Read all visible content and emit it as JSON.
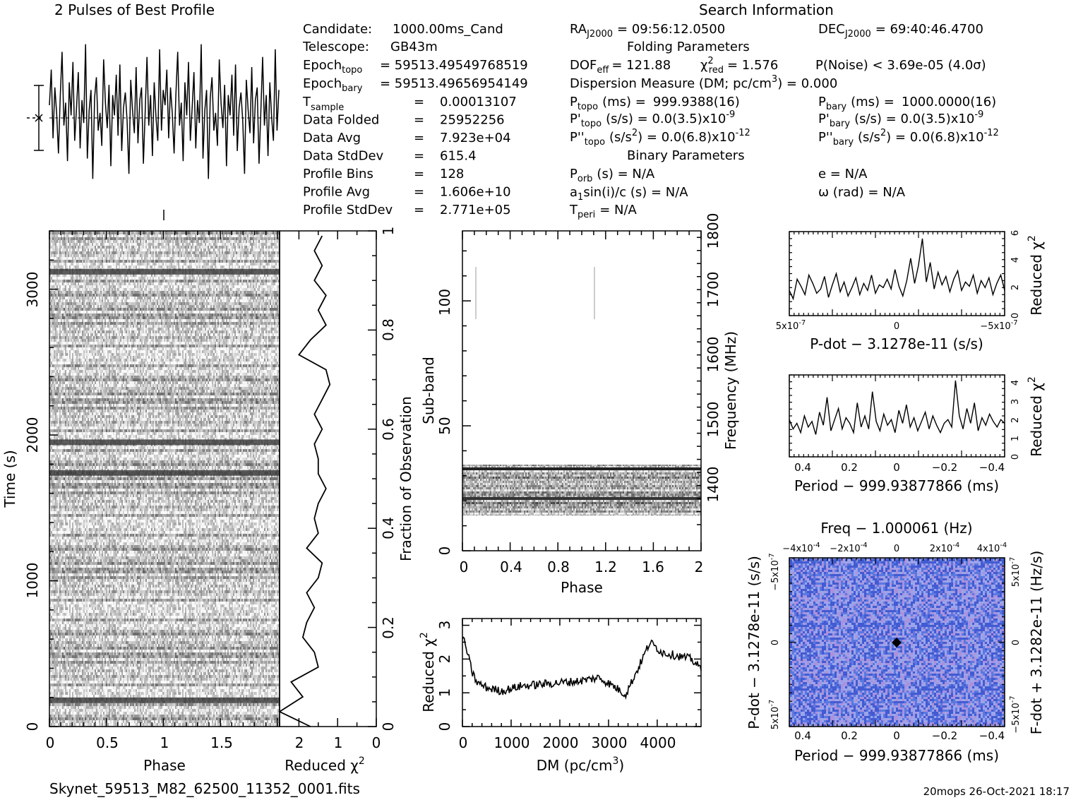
{
  "header": {
    "profile_title": "2 Pulses of Best Profile",
    "search_title": "Search Information",
    "filename": "Skynet_59513_M82_62500_11352_0001.fits",
    "footer_stamp": "20mops 26-Oct-2021 18:17"
  },
  "info": {
    "candidate": {
      "label": "Candidate:",
      "value": "1000.00ms_Cand"
    },
    "telescope": {
      "label": "Telescope:",
      "value": "GB43m"
    },
    "epoch_topo": {
      "label": "Epoch",
      "sub": "topo",
      "value": "= 59513.49549768519"
    },
    "epoch_bary": {
      "label": "Epoch",
      "sub": "bary",
      "value": "= 59513.49656954149"
    },
    "rows": [
      {
        "label": "T",
        "sub": "sample",
        "value": "0.00013107"
      },
      {
        "label": "Data Folded",
        "sub": "",
        "value": "25952256"
      },
      {
        "label": "Data Avg",
        "sub": "",
        "value": "7.923e+04"
      },
      {
        "label": "Data StdDev",
        "sub": "",
        "value": "615.4"
      },
      {
        "label": "Profile Bins",
        "sub": "",
        "value": "128"
      },
      {
        "label": "Profile Avg",
        "sub": "",
        "value": "1.606e+10"
      },
      {
        "label": "Profile StdDev",
        "sub": "",
        "value": "2.771e+05"
      }
    ],
    "ra": {
      "label": "RA",
      "sub": "J2000",
      "value": "= 09:56:12.0500"
    },
    "dec": {
      "label": "DEC",
      "sub": "J2000",
      "value": "= 69:40:46.4700"
    },
    "folding_title": "Folding Parameters",
    "dof": {
      "label": "DOF",
      "sub": "eff",
      "value": "= 121.88"
    },
    "chi_red": {
      "label": "χ",
      "sup": "2",
      "sub": "red",
      "value": "= 1.576"
    },
    "pnoise": "P(Noise) < 3.69e-05  (4.0σ)",
    "dm_label": "Dispersion Measure (DM; pc/cm",
    "dm_sup": "3",
    "dm_value": ") = 0.000",
    "p_topo": {
      "label": "P",
      "sub": "topo",
      "unit": "(ms) =",
      "value": "999.9388(16)"
    },
    "p_bary": {
      "label": "P",
      "sub": "bary",
      "unit": "(ms) =",
      "value": "1000.0000(16)"
    },
    "pd_topo": {
      "label": "P'",
      "sub": "topo",
      "value": "(s/s) = 0.0(3.5)x10",
      "exp": "-9"
    },
    "pd_bary": {
      "label": "P'",
      "sub": "bary",
      "value": "(s/s) = 0.0(3.5)x10",
      "exp": "-9"
    },
    "pdd_topo": {
      "label": "P''",
      "sub": "topo",
      "value": "(s/s",
      "sup": "2",
      "value2": ") = 0.0(6.8)x10",
      "exp": "-12"
    },
    "pdd_bary": {
      "label": "P''",
      "sub": "bary",
      "value": "(s/s",
      "sup": "2",
      "value2": ") = 0.0(6.8)x10",
      "exp": "-12"
    },
    "binary_title": "Binary Parameters",
    "porb": {
      "label": "P",
      "sub": "orb",
      "value": "(s) = N/A"
    },
    "a1": {
      "label": "a",
      "sub": "1",
      "value": "sin(i)/c (s) = N/A"
    },
    "tperi": {
      "label": "T",
      "sub": "peri",
      "value": "= N/A"
    },
    "ecc": "e = N/A",
    "omega": "ω (rad) = N/A"
  },
  "chart_data": [
    {
      "id": "pulse_profile",
      "type": "line",
      "title": "2 Pulses of Best Profile",
      "xlabel": "",
      "ylabel": "",
      "xlim": [
        0,
        2
      ],
      "values": [
        0.5,
        1.9,
        -0.8,
        1.2,
        0.2,
        -1.4,
        0.9,
        2.6,
        -0.3,
        0.6,
        -1.7,
        1.4,
        0.1,
        2.2,
        -0.9,
        0.4,
        1.8,
        -1.2,
        0.7,
        -0.2,
        2.9,
        -1.6,
        0.3,
        1.1,
        -2.4,
        0.8,
        1.6,
        -0.5,
        0.2,
        -1.1,
        2.3,
        0.6,
        -0.4,
        1.3,
        -1.9,
        0.9,
        0.1,
        1.7,
        -0.7,
        2.1,
        -1.3,
        0.4,
        1.0,
        -0.1,
        -2.2,
        1.5,
        0.3,
        -0.6,
        2.0,
        -1.0,
        0.7,
        1.2,
        -1.8,
        0.2,
        2.4,
        -0.3,
        0.9,
        -1.5,
        1.4,
        0.0,
        -0.9,
        2.7,
        -0.5,
        1.1
      ]
    },
    {
      "id": "time_phase",
      "type": "heatmap",
      "xlabel": "Phase",
      "ylabel": "Time (s)",
      "y2label": "Fraction of Observation",
      "xlim": [
        0,
        2
      ],
      "ylim": [
        0,
        3400
      ],
      "xticks": [
        "0",
        "0.5",
        "1",
        "1.5"
      ],
      "yticks": [
        "0",
        "1000",
        "2000",
        "3000"
      ],
      "y2ticks": [
        "0",
        "0.2",
        "0.4",
        "0.6",
        "0.8",
        "1"
      ],
      "dark_rows_s": [
        180,
        1740,
        1950,
        3120
      ]
    },
    {
      "id": "time_chi2",
      "type": "line",
      "xlabel": "Reduced χ",
      "xlabel_sup": "2",
      "xlim": [
        2.5,
        0
      ],
      "xticks": [
        "2",
        "1",
        "0"
      ],
      "fraction": [
        0.0,
        0.03,
        0.06,
        0.09,
        0.12,
        0.15,
        0.18,
        0.21,
        0.24,
        0.27,
        0.3,
        0.33,
        0.36,
        0.39,
        0.42,
        0.45,
        0.48,
        0.51,
        0.54,
        0.57,
        0.6,
        0.63,
        0.66,
        0.69,
        0.72,
        0.75,
        0.78,
        0.81,
        0.84,
        0.87,
        0.9,
        0.93,
        0.96,
        0.99
      ],
      "chi2": [
        1.7,
        2.5,
        1.9,
        2.2,
        1.5,
        1.6,
        1.9,
        1.8,
        1.6,
        1.8,
        1.5,
        1.4,
        1.8,
        1.5,
        1.6,
        1.5,
        1.3,
        1.5,
        1.5,
        1.6,
        1.4,
        1.6,
        1.4,
        1.2,
        1.3,
        2.0,
        1.7,
        1.3,
        1.5,
        1.3,
        1.6,
        1.4,
        1.6,
        1.4
      ]
    },
    {
      "id": "subband_phase",
      "type": "heatmap",
      "xlabel": "Phase",
      "ylabel": "Sub-band",
      "y2label": "Frequency (MHz)",
      "xlim": [
        0,
        2
      ],
      "ylim": [
        0,
        128
      ],
      "y2lim": [
        1310,
        1800
      ],
      "xticks": [
        "0",
        "0.4",
        "0.8",
        "1.2",
        "1.6",
        "2"
      ],
      "yticks": [
        "0",
        "50",
        "100"
      ],
      "y2ticks": [
        "1400",
        "1500",
        "1600",
        "1700",
        "1800"
      ],
      "active_subbands": [
        15,
        35
      ]
    },
    {
      "id": "dm_chi2",
      "type": "line",
      "xlabel": "DM (pc/cm",
      "xlabel_sup": "3",
      "ylabel": "Reduced χ",
      "ylabel_sup": "2",
      "xlim": [
        0,
        4900
      ],
      "ylim": [
        0,
        3.2
      ],
      "xticks": [
        "0",
        "1000",
        "2000",
        "3000",
        "4000"
      ],
      "yticks": [
        "0",
        "1",
        "2",
        "3"
      ],
      "x": [
        0,
        100,
        200,
        300,
        500,
        800,
        1200,
        1600,
        2000,
        2400,
        2800,
        3100,
        3350,
        3600,
        3850,
        4100,
        4400,
        4700,
        4900
      ],
      "y": [
        2.7,
        2.2,
        1.6,
        1.3,
        1.15,
        1.05,
        1.2,
        1.25,
        1.3,
        1.35,
        1.45,
        1.2,
        0.95,
        1.7,
        2.5,
        2.2,
        2.1,
        2.0,
        1.7
      ]
    },
    {
      "id": "pdot_chi2",
      "type": "line",
      "xlabel": "P-dot − 3.1278e-11 (s/s)",
      "ylabel": "Reduced χ",
      "ylabel_sup": "2",
      "xlim": [
        5e-07,
        -5e-07
      ],
      "ylim": [
        0,
        6
      ],
      "xticks": [
        "5x10",
        "0",
        "−5x10"
      ],
      "xtick_exp": "-7",
      "yticks": [
        "0",
        "2",
        "4",
        "6"
      ],
      "values": [
        1.8,
        1.2,
        2.6,
        2.1,
        1.5,
        2.9,
        2.3,
        1.6,
        1.9,
        2.8,
        1.3,
        2.2,
        3.0,
        1.7,
        2.4,
        1.4,
        2.0,
        2.7,
        1.5,
        2.3,
        1.8,
        2.9,
        1.6,
        2.2,
        2.0,
        2.6,
        1.9,
        3.3,
        2.1,
        1.4,
        2.5,
        4.1,
        2.3,
        3.6,
        5.5,
        2.4,
        3.8,
        1.9,
        3.1,
        2.2,
        2.8,
        1.7,
        2.6,
        3.2,
        1.8,
        2.4,
        2.1,
        2.9,
        1.6,
        2.5,
        2.0,
        2.7,
        1.5,
        2.3,
        2.9,
        1.8
      ]
    },
    {
      "id": "period_chi2",
      "type": "line",
      "xlabel": "Period − 999.93877866 (ms)",
      "ylabel": "Reduced χ",
      "ylabel_sup": "2",
      "xlim": [
        0.45,
        -0.45
      ],
      "ylim": [
        0,
        4.4
      ],
      "xticks": [
        "0.4",
        "0.2",
        "0",
        "−0.2",
        "−0.4"
      ],
      "yticks": [
        "0",
        "1",
        "2",
        "3",
        "4"
      ],
      "values": [
        2.0,
        1.5,
        1.8,
        1.3,
        2.2,
        1.6,
        1.9,
        1.2,
        2.4,
        1.7,
        3.2,
        1.4,
        2.0,
        2.6,
        1.5,
        2.1,
        1.8,
        1.3,
        2.9,
        1.6,
        2.2,
        1.5,
        3.5,
        1.9,
        1.4,
        2.3,
        1.7,
        2.0,
        1.3,
        2.5,
        1.8,
        2.8,
        1.6,
        2.1,
        1.4,
        1.9,
        2.4,
        1.5,
        2.2,
        1.7,
        1.3,
        1.8,
        2.0,
        1.6,
        4.1,
        2.2,
        1.5,
        2.6,
        1.8,
        2.9,
        1.4,
        2.1,
        1.7,
        2.3,
        1.9,
        1.6,
        2.0,
        1.8
      ]
    },
    {
      "id": "pp_dot",
      "type": "heatmap",
      "title": "Freq − 1.000061 (Hz)",
      "xlabel": "Period − 999.93877866 (ms)",
      "ylabel": "P-dot − 3.1278e-11 (s/s)",
      "y2label": "F-dot + 3.1282e-11 (Hz/s)",
      "xticks": [
        "0.4",
        "0.2",
        "0",
        "−0.2",
        "−0.4"
      ],
      "top_ticks": [
        "−4x10",
        "−2x10",
        "0",
        "2x10",
        "4x10"
      ],
      "top_tick_exp": "-4",
      "yticks": [
        "5x10",
        "0",
        "−5x10"
      ],
      "ytick_exp": "-7",
      "y2ticks": [
        "5x10",
        "0",
        "−5x10"
      ],
      "y2tick_exp": "-7",
      "colors": {
        "base": "#5a78e0",
        "light": "#d3c8f2",
        "dark": "#2d44c6",
        "pink": "#e7a7dc"
      }
    }
  ]
}
